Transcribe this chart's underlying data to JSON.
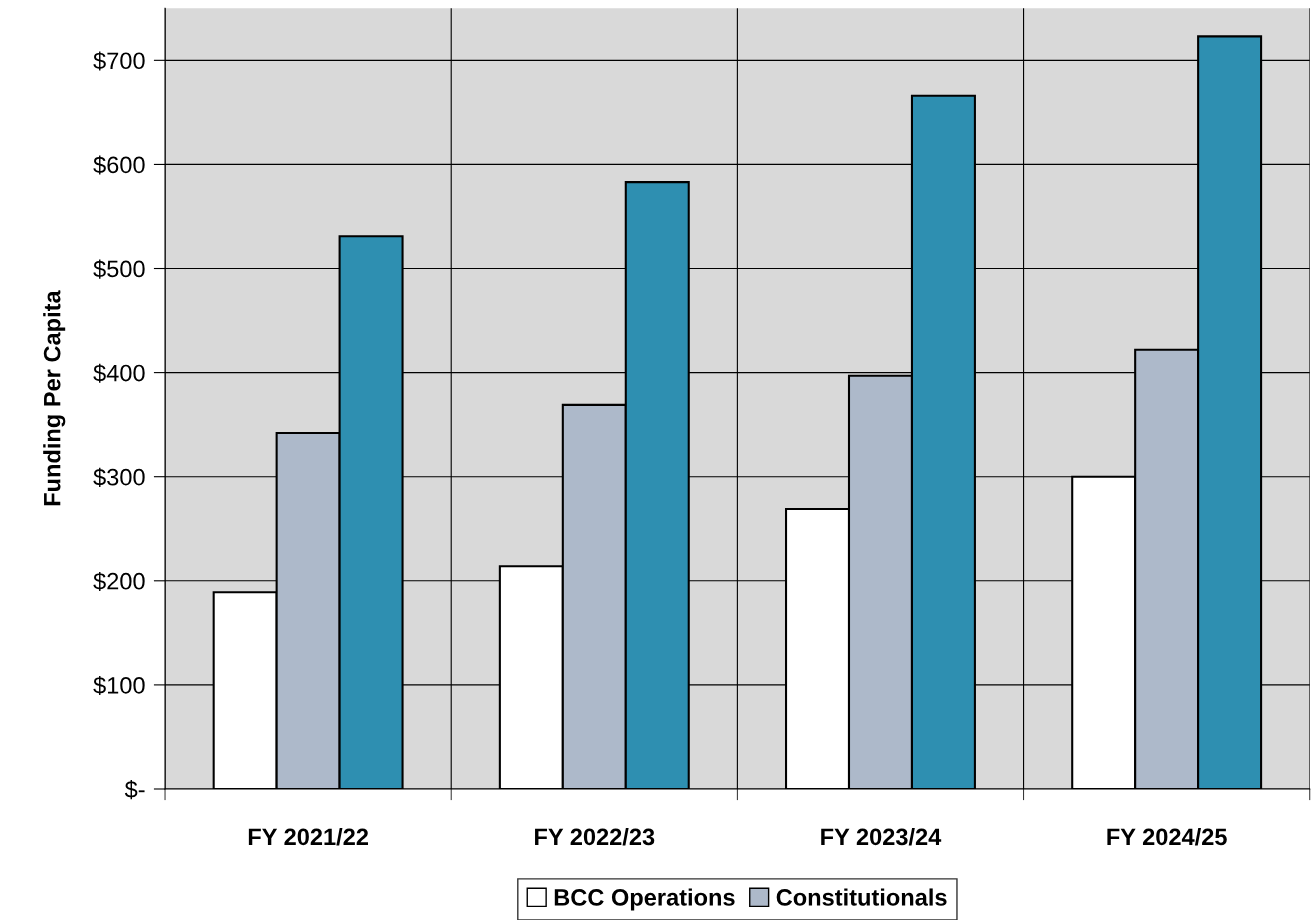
{
  "chart_data": {
    "type": "bar",
    "ylabel": "Funding Per Capita",
    "categories": [
      "FY 2021/22",
      "FY 2022/23",
      "FY 2023/24",
      "FY 2024/25"
    ],
    "series": [
      {
        "name": "BCC Operations",
        "color": "#ffffff",
        "values": [
          189,
          214,
          269,
          300
        ]
      },
      {
        "name": "Constitutionals",
        "color": "#adb9ca",
        "values": [
          342,
          369,
          397,
          422
        ]
      },
      {
        "color": "#2e8fb1",
        "values": [
          531,
          583,
          666,
          723
        ]
      }
    ],
    "ylim": [
      0,
      750
    ],
    "yticks": [
      {
        "value": 0,
        "label": "$-"
      },
      {
        "value": 100,
        "label": "$100"
      },
      {
        "value": 200,
        "label": "$200"
      },
      {
        "value": 300,
        "label": "$300"
      },
      {
        "value": 400,
        "label": "$400"
      },
      {
        "value": 500,
        "label": "$500"
      },
      {
        "value": 600,
        "label": "$600"
      },
      {
        "value": 700,
        "label": "$700"
      }
    ],
    "grid": true,
    "legend": "bottom"
  }
}
